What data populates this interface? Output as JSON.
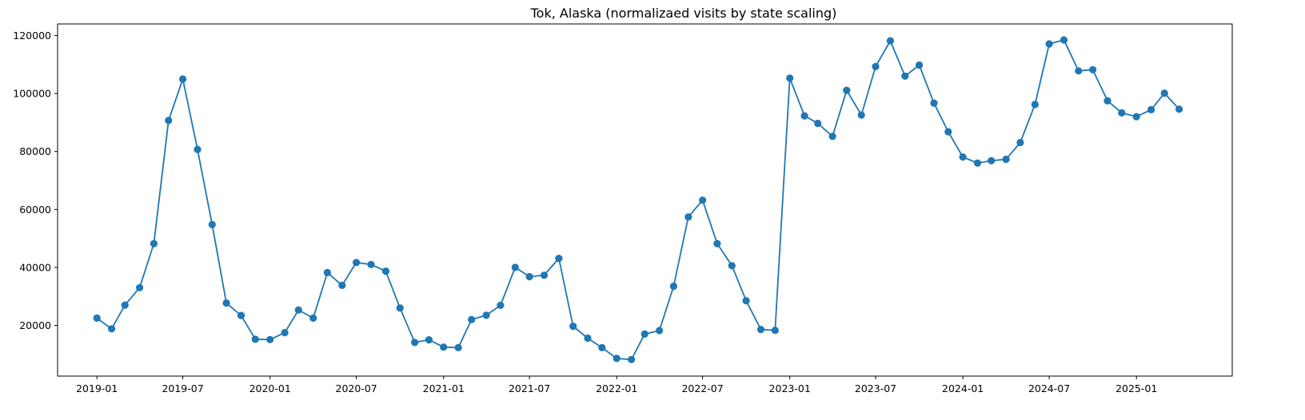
{
  "chart_data": {
    "type": "line",
    "title": "Tok, Alaska (normalizaed visits by state scaling)",
    "xlabel": "",
    "ylabel": "",
    "x_ticks": [
      "2019-01",
      "2019-07",
      "2020-01",
      "2020-07",
      "2021-01",
      "2021-07",
      "2022-01",
      "2022-07",
      "2023-01",
      "2023-07",
      "2024-01",
      "2024-07",
      "2025-01"
    ],
    "y_ticks": [
      20000,
      40000,
      60000,
      80000,
      100000,
      120000
    ],
    "xlim": [
      "2018-10-10",
      "2025-07-22"
    ],
    "ylim": [
      2500,
      124000
    ],
    "grid": false,
    "legend": "none",
    "marker": "circle",
    "color": "#1f77b4",
    "series": [
      {
        "x": [
          "2019-01",
          "2019-02",
          "2019-03",
          "2019-04",
          "2019-05",
          "2019-06",
          "2019-07",
          "2019-08",
          "2019-09",
          "2019-10",
          "2019-11",
          "2019-12",
          "2020-01",
          "2020-02",
          "2020-03",
          "2020-04",
          "2020-05",
          "2020-06",
          "2020-07",
          "2020-08",
          "2020-09",
          "2020-10",
          "2020-11",
          "2020-12",
          "2021-01",
          "2021-02",
          "2021-03",
          "2021-04",
          "2021-05",
          "2021-06",
          "2021-07",
          "2021-08",
          "2021-09",
          "2021-10",
          "2021-11",
          "2021-12",
          "2022-01",
          "2022-02",
          "2022-03",
          "2022-04",
          "2022-05",
          "2022-06",
          "2022-07",
          "2022-08",
          "2022-09",
          "2022-10",
          "2022-11",
          "2022-12",
          "2023-01",
          "2023-02",
          "2023-03",
          "2023-04",
          "2023-05",
          "2023-06",
          "2023-07",
          "2023-08",
          "2023-09",
          "2023-10",
          "2023-11",
          "2023-12",
          "2024-01",
          "2024-02",
          "2024-03",
          "2024-04",
          "2024-05",
          "2024-06",
          "2024-07",
          "2024-08",
          "2024-09",
          "2024-10",
          "2024-11",
          "2024-12",
          "2025-01",
          "2025-02",
          "2025-03",
          "2025-04"
        ],
        "values": [
          22500,
          18800,
          27000,
          33000,
          48200,
          90700,
          105000,
          80700,
          54800,
          27700,
          23400,
          15200,
          15100,
          17500,
          25300,
          22500,
          38200,
          33800,
          41700,
          41000,
          38700,
          26000,
          14100,
          15000,
          12500,
          12300,
          22000,
          23500,
          26900,
          40000,
          36800,
          37300,
          43100,
          19700,
          15600,
          12300,
          8600,
          8200,
          17000,
          18200,
          33500,
          57400,
          63200,
          48200,
          40600,
          28500,
          18600,
          18300,
          105300,
          92300,
          89700,
          85200,
          101100,
          92600,
          109300,
          118200,
          106000,
          109800,
          96700,
          86800,
          78100,
          76000,
          76800,
          77300,
          83100,
          96200,
          117100,
          118500,
          107800,
          108200,
          97500,
          93300,
          92000,
          94400,
          100100,
          94600
        ]
      }
    ]
  }
}
